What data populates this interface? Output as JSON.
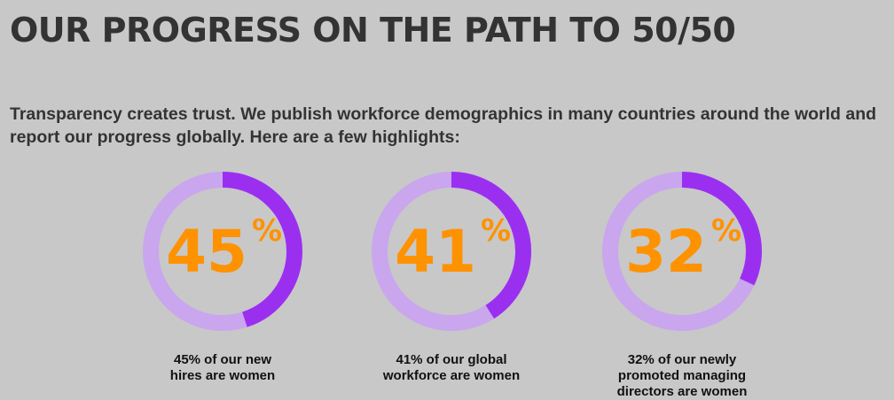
{
  "page": {
    "title": "OUR PROGRESS ON THE PATH TO 50/50",
    "intro": "Transparency creates trust. We publish workforce demographics in many countries around the world and report our progress globally. Here are a few highlights:"
  },
  "colors": {
    "background": "#c8c8c8",
    "ring_track": "#c9a6ee",
    "ring_fill": "#9b2ff0",
    "number": "#ff9200"
  },
  "stats": [
    {
      "number": "45",
      "unit": "%",
      "value_pct": 45,
      "caption": "45% of our new\nhires are women"
    },
    {
      "number": "41",
      "unit": "%",
      "value_pct": 41,
      "caption": "41% of our global\nworkforce are women"
    },
    {
      "number": "32",
      "unit": "%",
      "value_pct": 32,
      "caption": "32% of our newly\npromoted managing\ndirectors are women"
    }
  ]
}
